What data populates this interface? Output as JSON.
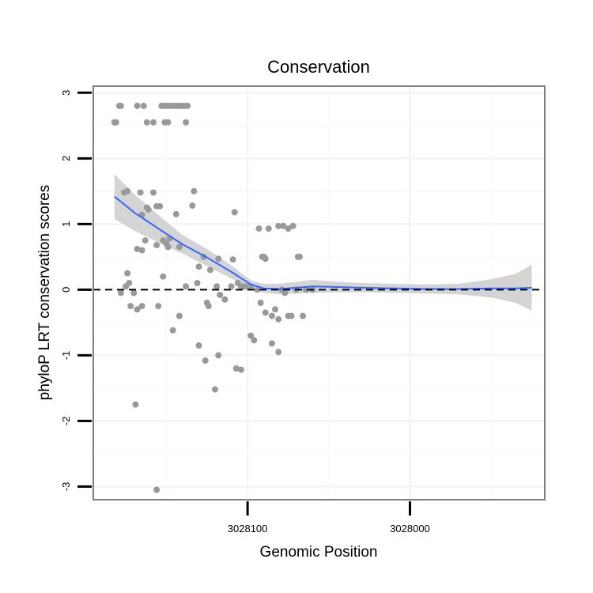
{
  "chart_data": {
    "type": "scatter",
    "title": "Conservation",
    "xlabel": "Genomic Position",
    "ylabel": "phyloP LRT conservation scores",
    "x_reversed": true,
    "xlim": [
      3028195,
      3027917
    ],
    "ylim": [
      -3.2,
      3.1
    ],
    "x_ticks": [
      3028100,
      3028000
    ],
    "y_ticks": [
      3,
      2,
      1,
      0,
      -1,
      -2,
      -3
    ],
    "x_tick_labels": [
      "3028100",
      "3028000"
    ],
    "y_tick_labels": [
      "3",
      "2",
      "1",
      "0",
      "-1",
      "-2",
      "-3"
    ],
    "grid": true,
    "reference_line": {
      "y": 0,
      "style": "dashed"
    },
    "colors": {
      "points": "#999999",
      "smooth": "#3366ff",
      "ribbon": "#cccccc",
      "reference": "#000000",
      "frame": "#7f7f7f"
    },
    "points": [
      {
        "x": 3028182,
        "y": 2.55
      },
      {
        "x": 3028181,
        "y": 2.55
      },
      {
        "x": 3028179,
        "y": 2.8
      },
      {
        "x": 3028178,
        "y": 2.8
      },
      {
        "x": 3028168,
        "y": 2.8
      },
      {
        "x": 3028164,
        "y": 2.8
      },
      {
        "x": 3028162,
        "y": 2.55
      },
      {
        "x": 3028158,
        "y": 2.55
      },
      {
        "x": 3028153,
        "y": 2.8
      },
      {
        "x": 3028151,
        "y": 2.8
      },
      {
        "x": 3028149,
        "y": 2.8
      },
      {
        "x": 3028147,
        "y": 2.8
      },
      {
        "x": 3028145,
        "y": 2.8
      },
      {
        "x": 3028143,
        "y": 2.8
      },
      {
        "x": 3028141,
        "y": 2.8
      },
      {
        "x": 3028139,
        "y": 2.8
      },
      {
        "x": 3028137,
        "y": 2.8
      },
      {
        "x": 3028151,
        "y": 2.55
      },
      {
        "x": 3028149,
        "y": 2.55
      },
      {
        "x": 3028138,
        "y": 2.55
      },
      {
        "x": 3028176,
        "y": 1.48
      },
      {
        "x": 3028174,
        "y": 1.5
      },
      {
        "x": 3028166,
        "y": 1.48
      },
      {
        "x": 3028158,
        "y": 1.48
      },
      {
        "x": 3028162,
        "y": 1.25
      },
      {
        "x": 3028161,
        "y": 1.22
      },
      {
        "x": 3028156,
        "y": 1.27
      },
      {
        "x": 3028154,
        "y": 1.27
      },
      {
        "x": 3028165,
        "y": 1.14
      },
      {
        "x": 3028144,
        "y": 1.15
      },
      {
        "x": 3028133,
        "y": 1.5
      },
      {
        "x": 3028134,
        "y": 1.28
      },
      {
        "x": 3028108,
        "y": 1.18
      },
      {
        "x": 3028163,
        "y": 0.75
      },
      {
        "x": 3028156,
        "y": 0.68
      },
      {
        "x": 3028152,
        "y": 0.75
      },
      {
        "x": 3028150,
        "y": 0.7
      },
      {
        "x": 3028148,
        "y": 0.78
      },
      {
        "x": 3028149,
        "y": 0.65
      },
      {
        "x": 3028142,
        "y": 0.65
      },
      {
        "x": 3028168,
        "y": 0.62
      },
      {
        "x": 3028165,
        "y": 0.6
      },
      {
        "x": 3028127,
        "y": 0.5
      },
      {
        "x": 3028118,
        "y": 0.47
      },
      {
        "x": 3028109,
        "y": 0.46
      },
      {
        "x": 3028093,
        "y": 0.93
      },
      {
        "x": 3028087,
        "y": 0.93
      },
      {
        "x": 3028081,
        "y": 0.97
      },
      {
        "x": 3028078,
        "y": 0.97
      },
      {
        "x": 3028075,
        "y": 0.93
      },
      {
        "x": 3028072,
        "y": 0.97
      },
      {
        "x": 3028091,
        "y": 0.5
      },
      {
        "x": 3028090,
        "y": 0.5
      },
      {
        "x": 3028089,
        "y": 0.47
      },
      {
        "x": 3028069,
        "y": 0.5
      },
      {
        "x": 3028068,
        "y": 0.5
      },
      {
        "x": 3028174,
        "y": 0.25
      },
      {
        "x": 3028173,
        "y": 0.1
      },
      {
        "x": 3028152,
        "y": 0.2
      },
      {
        "x": 3028130,
        "y": 0.35
      },
      {
        "x": 3028123,
        "y": 0.3
      },
      {
        "x": 3028178,
        "y": -0.05
      },
      {
        "x": 3028175,
        "y": 0.05
      },
      {
        "x": 3028170,
        "y": -0.05
      },
      {
        "x": 3028165,
        "y": -0.25
      },
      {
        "x": 3028168,
        "y": -0.3
      },
      {
        "x": 3028172,
        "y": -0.25
      },
      {
        "x": 3028155,
        "y": -0.25
      },
      {
        "x": 3028142,
        "y": -0.4
      },
      {
        "x": 3028138,
        "y": 0.05
      },
      {
        "x": 3028131,
        "y": 0.1
      },
      {
        "x": 3028125,
        "y": -0.2
      },
      {
        "x": 3028124,
        "y": -0.25
      },
      {
        "x": 3028119,
        "y": 0.05
      },
      {
        "x": 3028117,
        "y": -0.08
      },
      {
        "x": 3028114,
        "y": -0.15
      },
      {
        "x": 3028110,
        "y": 0.05
      },
      {
        "x": 3028106,
        "y": 0.1
      },
      {
        "x": 3028104,
        "y": 0.05
      },
      {
        "x": 3028102,
        "y": 0.05
      },
      {
        "x": 3028100,
        "y": 0.05
      },
      {
        "x": 3028098,
        "y": 0.05
      },
      {
        "x": 3028094,
        "y": 0.0
      },
      {
        "x": 3028092,
        "y": -0.2
      },
      {
        "x": 3028085,
        "y": -0.4
      },
      {
        "x": 3028083,
        "y": -0.3
      },
      {
        "x": 3028081,
        "y": -0.45
      },
      {
        "x": 3028079,
        "y": 0.0
      },
      {
        "x": 3028077,
        "y": -0.05
      },
      {
        "x": 3028075,
        "y": -0.4
      },
      {
        "x": 3028073,
        "y": -0.4
      },
      {
        "x": 3028070,
        "y": 0.0
      },
      {
        "x": 3028066,
        "y": -0.4
      },
      {
        "x": 3028064,
        "y": 0.0
      },
      {
        "x": 3028060,
        "y": 0.0
      },
      {
        "x": 3028089,
        "y": -0.35
      },
      {
        "x": 3028146,
        "y": -0.62
      },
      {
        "x": 3028130,
        "y": -0.85
      },
      {
        "x": 3028118,
        "y": -1.0
      },
      {
        "x": 3028126,
        "y": -1.08
      },
      {
        "x": 3028107,
        "y": -1.2
      },
      {
        "x": 3028104,
        "y": -1.22
      },
      {
        "x": 3028098,
        "y": -0.7
      },
      {
        "x": 3028096,
        "y": -0.77
      },
      {
        "x": 3028085,
        "y": -0.82
      },
      {
        "x": 3028081,
        "y": -0.95
      },
      {
        "x": 3028120,
        "y": -1.52
      },
      {
        "x": 3028169,
        "y": -1.75
      },
      {
        "x": 3028156,
        "y": -3.05
      }
    ],
    "smooth_line": {
      "x": [
        3028182,
        3028170,
        3028155,
        3028140,
        3028125,
        3028110,
        3028098,
        3028090,
        3028080,
        3028070,
        3028060,
        3028045,
        3028030,
        3028010,
        3027990,
        3027970,
        3027950,
        3027935,
        3027925
      ],
      "y": [
        1.42,
        1.18,
        0.93,
        0.69,
        0.49,
        0.27,
        0.08,
        0.02,
        0.01,
        0.03,
        0.05,
        0.04,
        0.03,
        0.02,
        0.01,
        0.01,
        0.02,
        0.02,
        0.03
      ],
      "ymin": [
        1.08,
        0.9,
        0.72,
        0.55,
        0.36,
        0.17,
        0.02,
        -0.05,
        -0.07,
        -0.06,
        -0.05,
        -0.04,
        -0.04,
        -0.05,
        -0.06,
        -0.07,
        -0.12,
        -0.2,
        -0.32
      ],
      "ymax": [
        1.76,
        1.46,
        1.14,
        0.83,
        0.62,
        0.37,
        0.14,
        0.09,
        0.09,
        0.12,
        0.15,
        0.12,
        0.1,
        0.09,
        0.08,
        0.09,
        0.16,
        0.24,
        0.38
      ]
    }
  }
}
